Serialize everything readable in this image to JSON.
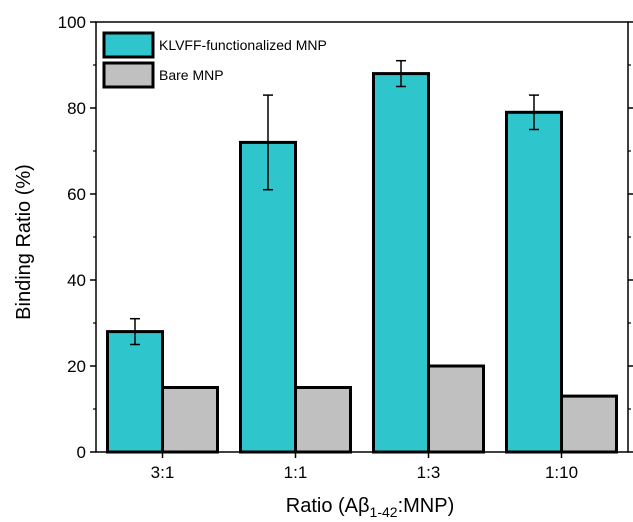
{
  "chart_data": {
    "type": "bar",
    "categories": [
      "3:1",
      "1:1",
      "1:3",
      "1:10"
    ],
    "series": [
      {
        "name": "KLVFF-functionalized MNP",
        "values": [
          28,
          72,
          88,
          79
        ],
        "error_low": [
          25,
          61,
          85,
          75
        ],
        "error_high": [
          31,
          83,
          91,
          83
        ],
        "color": "#2ec6cc"
      },
      {
        "name": "Bare MNP",
        "values": [
          15,
          15,
          20,
          13
        ],
        "color": "#c0c0c0"
      }
    ],
    "xlabel": {
      "prefix": "Ratio (A",
      "beta": "β",
      "subscript": "1-42",
      "suffix": ":MNP)"
    },
    "ylabel": "Binding Ratio (%)",
    "ylim": [
      0,
      100
    ],
    "yticks": [
      0,
      20,
      40,
      60,
      80,
      100
    ],
    "ytick_labels": [
      "0",
      "20",
      "40",
      "60",
      "80",
      "100"
    ],
    "grid": false,
    "legend_position": "top-left",
    "bar_edge_color": "#000000"
  }
}
